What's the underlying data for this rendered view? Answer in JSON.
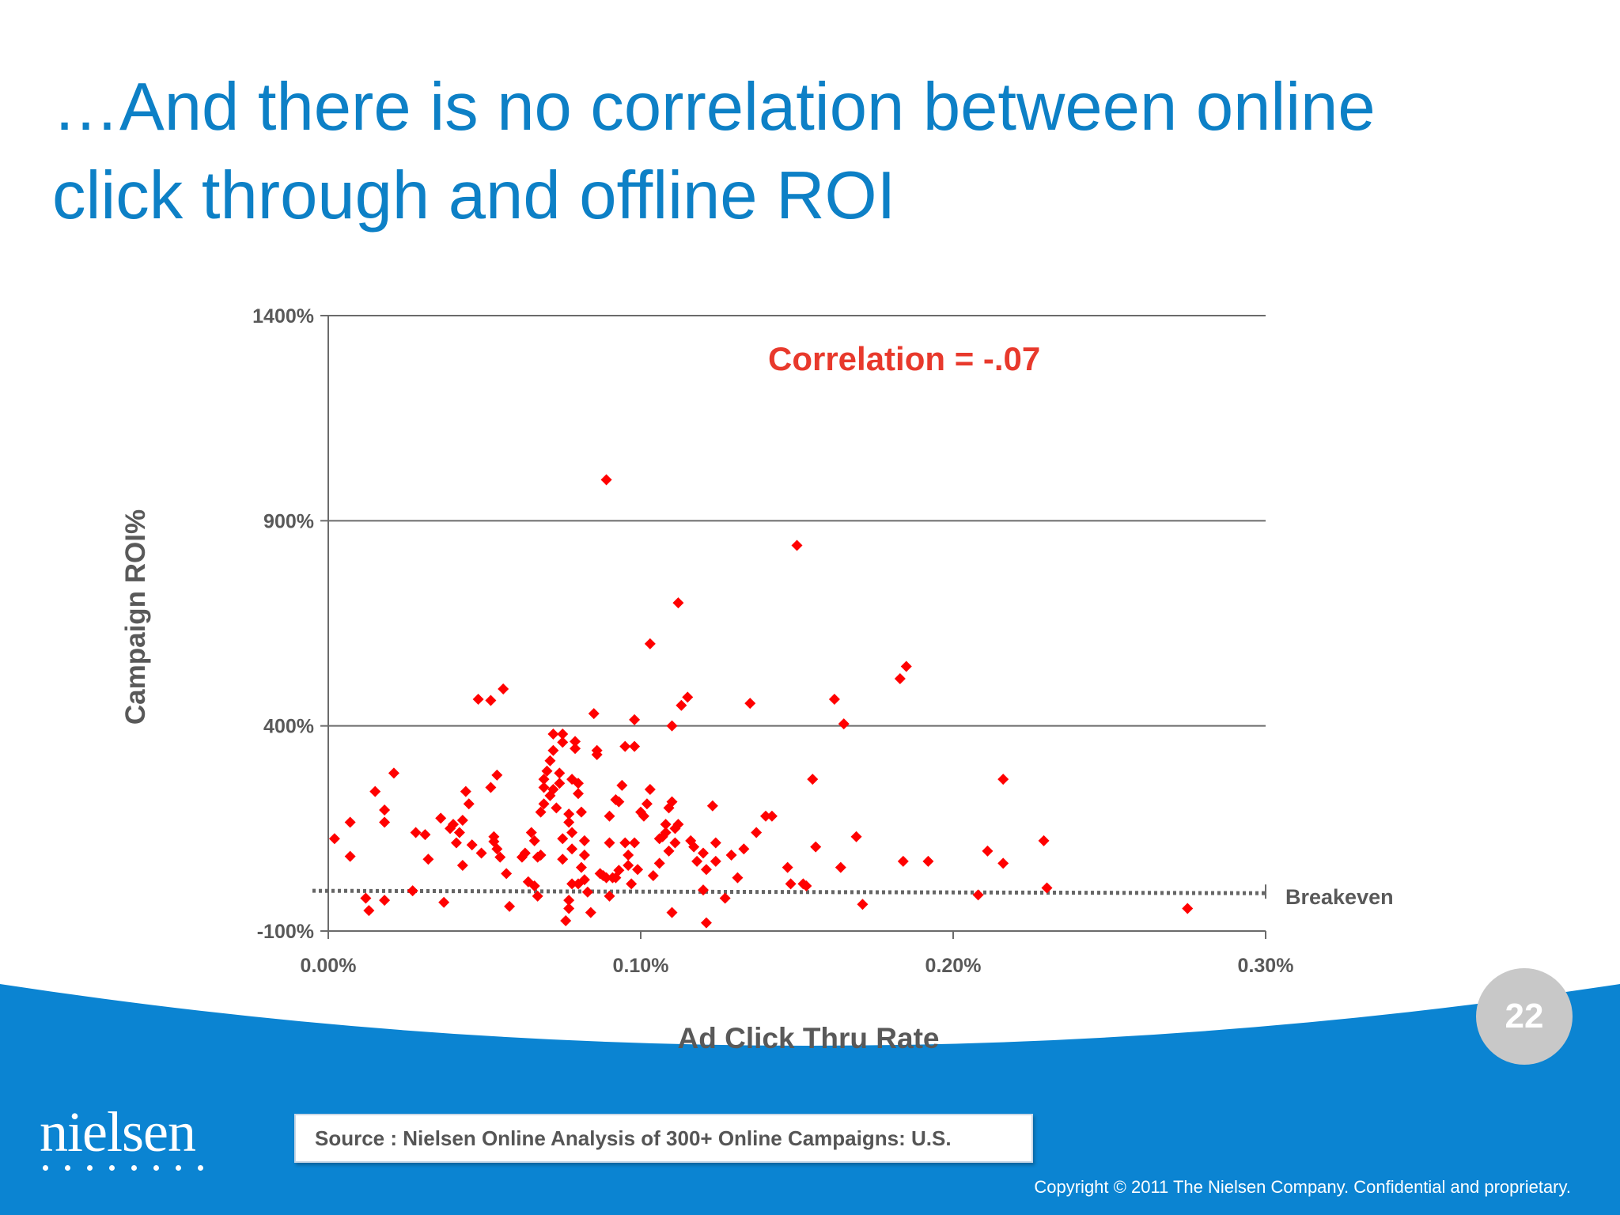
{
  "title": {
    "line1": "…And there is no correlation between online",
    "line2": "click through and offline ROI"
  },
  "page_number": "22",
  "logo": {
    "text": "nielsen"
  },
  "source": "Source : Nielsen Online Analysis of 300+ Online Campaigns:  U.S.",
  "copyright": "Copyright © 2011 The Nielsen Company. Confidential and proprietary.",
  "colors": {
    "title": "#0d80c6",
    "marker": "#ff0000",
    "annotation": "#e8392c",
    "brand_blue": "#0b84d2",
    "axis_text": "#595959"
  },
  "chart_data": {
    "type": "scatter",
    "title": "",
    "xlabel": "Ad Click Thru Rate",
    "ylabel": "Campaign ROI%",
    "xlim": [
      0,
      0.3
    ],
    "ylim": [
      -100,
      1400
    ],
    "x_ticks": [
      0,
      0.1,
      0.2,
      0.3
    ],
    "x_tick_labels": [
      "0.00%",
      "0.10%",
      "0.20%",
      "0.30%"
    ],
    "y_ticks": [
      -100,
      400,
      900,
      1400
    ],
    "y_tick_labels": [
      "-100%",
      "400%",
      "900%",
      "1400%"
    ],
    "y_gridlines": true,
    "annotation": "Correlation = -.07",
    "reference_line": {
      "label": "Breakeven",
      "y": -2
    },
    "marker": "diamond",
    "points": [
      [
        0.002,
        125
      ],
      [
        0.007,
        82
      ],
      [
        0.007,
        165
      ],
      [
        0.012,
        -20
      ],
      [
        0.013,
        -50
      ],
      [
        0.015,
        240
      ],
      [
        0.018,
        -25
      ],
      [
        0.018,
        195
      ],
      [
        0.018,
        165
      ],
      [
        0.021,
        285
      ],
      [
        0.027,
        -2
      ],
      [
        0.028,
        140
      ],
      [
        0.031,
        135
      ],
      [
        0.032,
        75
      ],
      [
        0.036,
        175
      ],
      [
        0.037,
        -30
      ],
      [
        0.039,
        150
      ],
      [
        0.04,
        160
      ],
      [
        0.041,
        115
      ],
      [
        0.042,
        140
      ],
      [
        0.043,
        60
      ],
      [
        0.043,
        170
      ],
      [
        0.044,
        240
      ],
      [
        0.045,
        210
      ],
      [
        0.046,
        110
      ],
      [
        0.048,
        465
      ],
      [
        0.049,
        90
      ],
      [
        0.052,
        462
      ],
      [
        0.052,
        250
      ],
      [
        0.053,
        130
      ],
      [
        0.053,
        118
      ],
      [
        0.054,
        280
      ],
      [
        0.054,
        100
      ],
      [
        0.055,
        80
      ],
      [
        0.056,
        490
      ],
      [
        0.057,
        40
      ],
      [
        0.058,
        -40
      ],
      [
        0.062,
        80
      ],
      [
        0.063,
        90
      ],
      [
        0.064,
        20
      ],
      [
        0.065,
        140
      ],
      [
        0.066,
        10
      ],
      [
        0.066,
        120
      ],
      [
        0.067,
        80
      ],
      [
        0.067,
        -15
      ],
      [
        0.068,
        85
      ],
      [
        0.068,
        190
      ],
      [
        0.069,
        210
      ],
      [
        0.069,
        250
      ],
      [
        0.069,
        270
      ],
      [
        0.07,
        290
      ],
      [
        0.071,
        315
      ],
      [
        0.071,
        230
      ],
      [
        0.072,
        245
      ],
      [
        0.072,
        340
      ],
      [
        0.072,
        380
      ],
      [
        0.073,
        200
      ],
      [
        0.074,
        285
      ],
      [
        0.074,
        260
      ],
      [
        0.075,
        360
      ],
      [
        0.075,
        380
      ],
      [
        0.075,
        125
      ],
      [
        0.075,
        75
      ],
      [
        0.076,
        -75
      ],
      [
        0.077,
        -45
      ],
      [
        0.077,
        -25
      ],
      [
        0.077,
        165
      ],
      [
        0.077,
        185
      ],
      [
        0.078,
        15
      ],
      [
        0.078,
        100
      ],
      [
        0.078,
        140
      ],
      [
        0.078,
        270
      ],
      [
        0.079,
        345
      ],
      [
        0.079,
        362
      ],
      [
        0.08,
        15
      ],
      [
        0.08,
        235
      ],
      [
        0.08,
        260
      ],
      [
        0.081,
        190
      ],
      [
        0.081,
        55
      ],
      [
        0.082,
        85
      ],
      [
        0.082,
        120
      ],
      [
        0.082,
        25
      ],
      [
        0.083,
        -5
      ],
      [
        0.084,
        -55
      ],
      [
        0.085,
        430
      ],
      [
        0.086,
        340
      ],
      [
        0.086,
        330
      ],
      [
        0.087,
        40
      ],
      [
        0.088,
        35
      ],
      [
        0.089,
        30
      ],
      [
        0.089,
        1000
      ],
      [
        0.09,
        -15
      ],
      [
        0.09,
        180
      ],
      [
        0.09,
        115
      ],
      [
        0.091,
        30
      ],
      [
        0.092,
        30
      ],
      [
        0.092,
        220
      ],
      [
        0.093,
        215
      ],
      [
        0.093,
        48
      ],
      [
        0.094,
        255
      ],
      [
        0.095,
        115
      ],
      [
        0.095,
        350
      ],
      [
        0.096,
        85
      ],
      [
        0.096,
        60
      ],
      [
        0.097,
        15
      ],
      [
        0.098,
        115
      ],
      [
        0.098,
        350
      ],
      [
        0.098,
        415
      ],
      [
        0.099,
        50
      ],
      [
        0.1,
        190
      ],
      [
        0.101,
        180
      ],
      [
        0.102,
        210
      ],
      [
        0.103,
        245
      ],
      [
        0.103,
        600
      ],
      [
        0.104,
        35
      ],
      [
        0.106,
        65
      ],
      [
        0.106,
        125
      ],
      [
        0.107,
        130
      ],
      [
        0.108,
        160
      ],
      [
        0.108,
        140
      ],
      [
        0.109,
        200
      ],
      [
        0.109,
        95
      ],
      [
        0.11,
        215
      ],
      [
        0.11,
        400
      ],
      [
        0.11,
        -55
      ],
      [
        0.111,
        115
      ],
      [
        0.111,
        150
      ],
      [
        0.112,
        160
      ],
      [
        0.112,
        700
      ],
      [
        0.113,
        450
      ],
      [
        0.115,
        470
      ],
      [
        0.116,
        120
      ],
      [
        0.117,
        105
      ],
      [
        0.118,
        70
      ],
      [
        0.12,
        90
      ],
      [
        0.12,
        0
      ],
      [
        0.121,
        -80
      ],
      [
        0.121,
        50
      ],
      [
        0.123,
        205
      ],
      [
        0.124,
        115
      ],
      [
        0.124,
        70
      ],
      [
        0.127,
        -20
      ],
      [
        0.129,
        85
      ],
      [
        0.131,
        30
      ],
      [
        0.133,
        100
      ],
      [
        0.135,
        455
      ],
      [
        0.137,
        140
      ],
      [
        0.14,
        180
      ],
      [
        0.142,
        180
      ],
      [
        0.147,
        55
      ],
      [
        0.148,
        15
      ],
      [
        0.15,
        840
      ],
      [
        0.152,
        15
      ],
      [
        0.153,
        10
      ],
      [
        0.155,
        270
      ],
      [
        0.156,
        105
      ],
      [
        0.162,
        465
      ],
      [
        0.164,
        55
      ],
      [
        0.165,
        405
      ],
      [
        0.169,
        130
      ],
      [
        0.171,
        -35
      ],
      [
        0.183,
        515
      ],
      [
        0.184,
        70
      ],
      [
        0.185,
        545
      ],
      [
        0.192,
        70
      ],
      [
        0.208,
        -12
      ],
      [
        0.211,
        95
      ],
      [
        0.216,
        270
      ],
      [
        0.216,
        65
      ],
      [
        0.229,
        120
      ],
      [
        0.23,
        5
      ],
      [
        0.275,
        -45
      ]
    ]
  }
}
